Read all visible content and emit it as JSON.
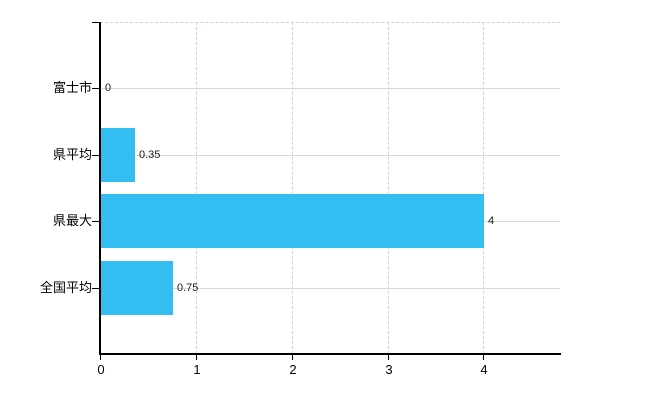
{
  "chart_data": {
    "type": "bar",
    "orientation": "horizontal",
    "title": "",
    "categories": [
      "富士市",
      "県平均",
      "県最大",
      "全国平均"
    ],
    "values": [
      0,
      0.35,
      4,
      0.75
    ],
    "data_labels": [
      "0",
      "0.35",
      "4",
      "0.75"
    ],
    "x_tick_labels": [
      "0",
      "1",
      "2",
      "3",
      "4"
    ],
    "x_tick_values": [
      0,
      1,
      2,
      3,
      4
    ],
    "xlim": [
      0,
      4.8
    ],
    "grid": true,
    "legend_visible": false,
    "colors": {
      "bar": "#33bdf0",
      "h_gridline": "#d4dcd4",
      "v_gridline": "#d9d0d7",
      "plot_top_border": "#d6ccd4",
      "axis": "#000000",
      "category_label": "#000000",
      "data_label": "#1a1a1a",
      "tick_label": "#000000"
    }
  }
}
